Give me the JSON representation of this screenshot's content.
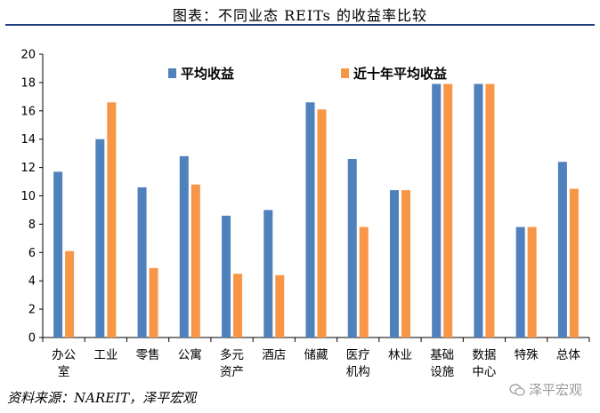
{
  "title": "图表：不同业态 REITs 的收益率比较",
  "source": "资料来源：NAREIT，泽平宏观",
  "watermark": "泽平宏观",
  "chart_data": {
    "type": "bar",
    "categories": [
      [
        "办公",
        "室"
      ],
      [
        "工业"
      ],
      [
        "零售"
      ],
      [
        "公寓"
      ],
      [
        "多元",
        "资产"
      ],
      [
        "酒店"
      ],
      [
        "储藏"
      ],
      [
        "医疗",
        "机构"
      ],
      [
        "林业"
      ],
      [
        "基础",
        "设施"
      ],
      [
        "数据",
        "中心"
      ],
      [
        "特殊"
      ],
      [
        "总体"
      ]
    ],
    "series": [
      {
        "name": "平均收益",
        "color": "#4f81bd",
        "values": [
          11.7,
          14.0,
          10.6,
          12.8,
          8.6,
          9.0,
          16.6,
          12.6,
          10.4,
          17.9,
          17.9,
          7.8,
          12.4
        ]
      },
      {
        "name": "近十年平均收益",
        "color": "#f79646",
        "values": [
          6.1,
          16.6,
          4.9,
          10.8,
          4.5,
          4.4,
          16.1,
          7.8,
          10.4,
          17.9,
          17.9,
          7.8,
          10.5
        ]
      }
    ],
    "ylim": [
      0,
      20
    ],
    "yticks": [
      0,
      2,
      4,
      6,
      8,
      10,
      12,
      14,
      16,
      18,
      20
    ],
    "legend_position": "top",
    "grid": false
  }
}
